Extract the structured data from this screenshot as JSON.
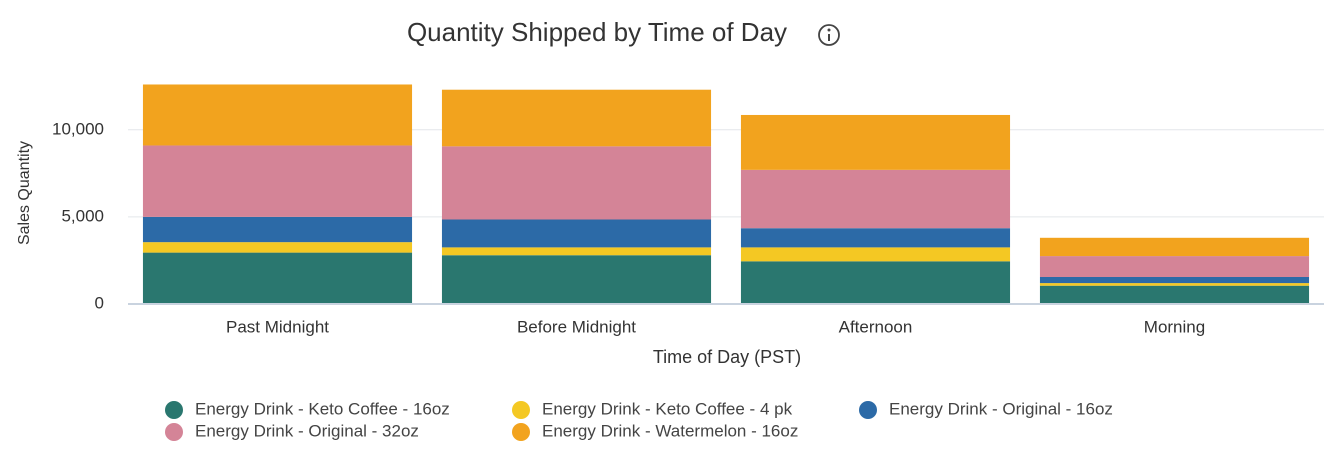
{
  "chart_data": {
    "type": "stacked_bar",
    "title": "Quantity Shipped by Time of Day",
    "x_label": "Time of Day (PST)",
    "y_label": "Sales Quantity",
    "categories": [
      "Past Midnight",
      "Before Midnight",
      "Afternoon",
      "Morning"
    ],
    "series": [
      {
        "name": "Energy Drink - Keto Coffee - 16oz",
        "color": "#2a776f",
        "values": [
          2950,
          2800,
          2450,
          1050
        ]
      },
      {
        "name": "Energy Drink - Keto Coffee - 4 pk",
        "color": "#f4c823",
        "values": [
          600,
          450,
          800,
          150
        ]
      },
      {
        "name": "Energy Drink - Original - 16oz",
        "color": "#2c6aa7",
        "values": [
          1450,
          1600,
          1100,
          350
        ]
      },
      {
        "name": "Energy Drink - Original - 32oz",
        "color": "#d48497",
        "values": [
          4100,
          4200,
          3350,
          1200
        ]
      },
      {
        "name": "Energy Drink - Watermelon - 16oz",
        "color": "#f2a31e",
        "values": [
          3500,
          3250,
          3150,
          1050
        ]
      }
    ],
    "ylim": [
      0,
      12800
    ],
    "yticks": [
      0,
      {
        "value": 5000,
        "label": "5,000"
      },
      {
        "value": 10000,
        "label": "10,000"
      }
    ],
    "grid": true
  }
}
